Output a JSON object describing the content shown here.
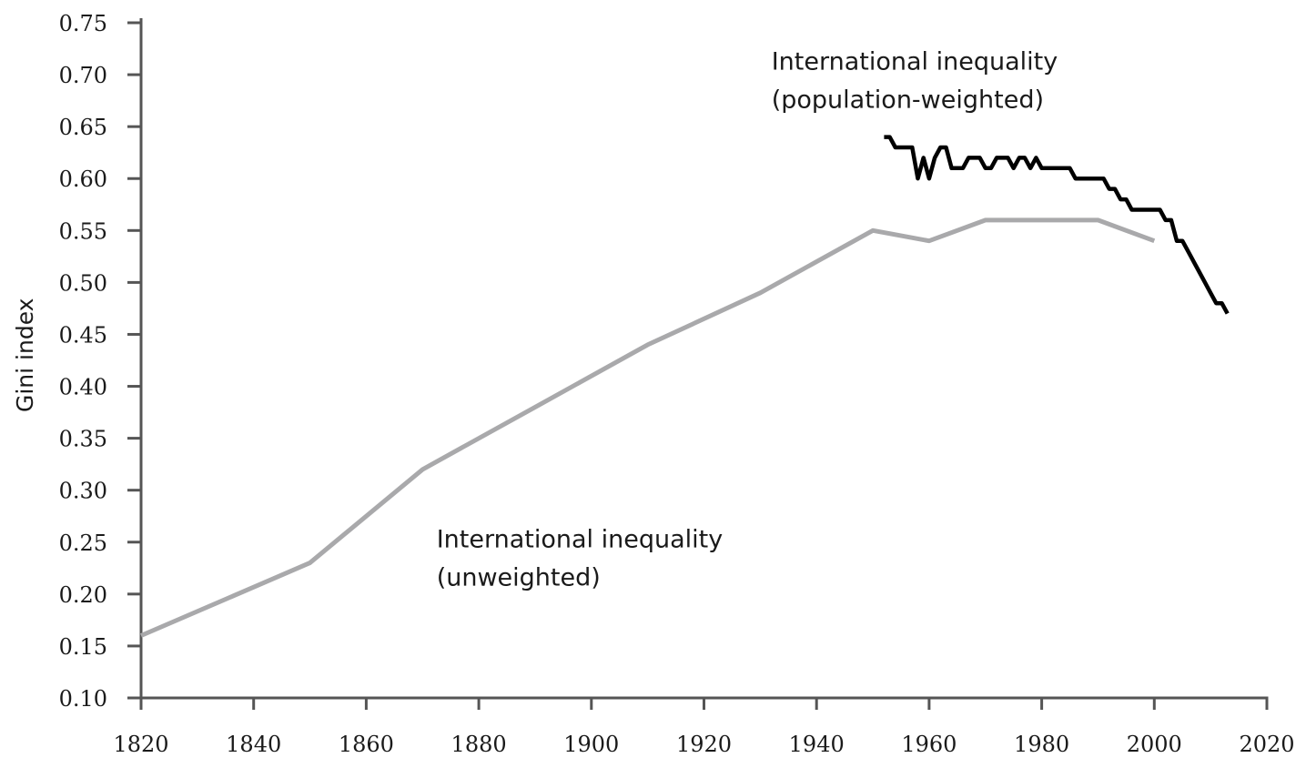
{
  "chart_data": {
    "type": "line",
    "title": "",
    "xlabel": "",
    "ylabel": "Gini index",
    "xlim": [
      1820,
      2020
    ],
    "ylim": [
      0.1,
      0.75
    ],
    "x_ticks": [
      1820,
      1840,
      1860,
      1880,
      1900,
      1920,
      1940,
      1960,
      1980,
      2000,
      2020
    ],
    "y_ticks": [
      "0.10",
      "0.15",
      "0.20",
      "0.25",
      "0.30",
      "0.35",
      "0.40",
      "0.45",
      "0.50",
      "0.55",
      "0.60",
      "0.65",
      "0.70",
      "0.75"
    ],
    "grid": false,
    "legend": "none",
    "series": [
      {
        "color": "#a9a9ab",
        "points": [
          [
            1820,
            0.16
          ],
          [
            1850,
            0.23
          ],
          [
            1870,
            0.32
          ],
          [
            1890,
            0.38
          ],
          [
            1910,
            0.44
          ],
          [
            1930,
            0.49
          ],
          [
            1950,
            0.55
          ],
          [
            1960,
            0.54
          ],
          [
            1970,
            0.56
          ],
          [
            1980,
            0.56
          ],
          [
            1990,
            0.56
          ],
          [
            2000,
            0.54
          ]
        ]
      },
      {
        "color": "#000000",
        "points": [
          [
            1952,
            0.64
          ],
          [
            1953,
            0.64
          ],
          [
            1954,
            0.63
          ],
          [
            1955,
            0.63
          ],
          [
            1956,
            0.63
          ],
          [
            1957,
            0.63
          ],
          [
            1958,
            0.6
          ],
          [
            1959,
            0.62
          ],
          [
            1960,
            0.6
          ],
          [
            1961,
            0.62
          ],
          [
            1962,
            0.63
          ],
          [
            1963,
            0.63
          ],
          [
            1964,
            0.61
          ],
          [
            1965,
            0.61
          ],
          [
            1966,
            0.61
          ],
          [
            1967,
            0.62
          ],
          [
            1968,
            0.62
          ],
          [
            1969,
            0.62
          ],
          [
            1970,
            0.61
          ],
          [
            1971,
            0.61
          ],
          [
            1972,
            0.62
          ],
          [
            1973,
            0.62
          ],
          [
            1974,
            0.62
          ],
          [
            1975,
            0.61
          ],
          [
            1976,
            0.62
          ],
          [
            1977,
            0.62
          ],
          [
            1978,
            0.61
          ],
          [
            1979,
            0.62
          ],
          [
            1980,
            0.61
          ],
          [
            1981,
            0.61
          ],
          [
            1982,
            0.61
          ],
          [
            1983,
            0.61
          ],
          [
            1984,
            0.61
          ],
          [
            1985,
            0.61
          ],
          [
            1986,
            0.6
          ],
          [
            1987,
            0.6
          ],
          [
            1988,
            0.6
          ],
          [
            1989,
            0.6
          ],
          [
            1990,
            0.6
          ],
          [
            1991,
            0.6
          ],
          [
            1992,
            0.59
          ],
          [
            1993,
            0.59
          ],
          [
            1994,
            0.58
          ],
          [
            1995,
            0.58
          ],
          [
            1996,
            0.57
          ],
          [
            1997,
            0.57
          ],
          [
            1998,
            0.57
          ],
          [
            1999,
            0.57
          ],
          [
            2000,
            0.57
          ],
          [
            2001,
            0.57
          ],
          [
            2002,
            0.56
          ],
          [
            2003,
            0.56
          ],
          [
            2004,
            0.54
          ],
          [
            2005,
            0.54
          ],
          [
            2006,
            0.53
          ],
          [
            2007,
            0.52
          ],
          [
            2008,
            0.51
          ],
          [
            2009,
            0.5
          ],
          [
            2010,
            0.49
          ],
          [
            2011,
            0.48
          ],
          [
            2012,
            0.48
          ],
          [
            2013,
            0.47
          ]
        ]
      }
    ],
    "annotations": [
      {
        "lines": [
          "International inequality",
          "(population-weighted)"
        ],
        "anchor": [
          1932,
          0.705
        ]
      },
      {
        "lines": [
          "International inequality",
          "(unweighted)"
        ],
        "anchor": [
          1872.5,
          0.245
        ]
      }
    ]
  }
}
